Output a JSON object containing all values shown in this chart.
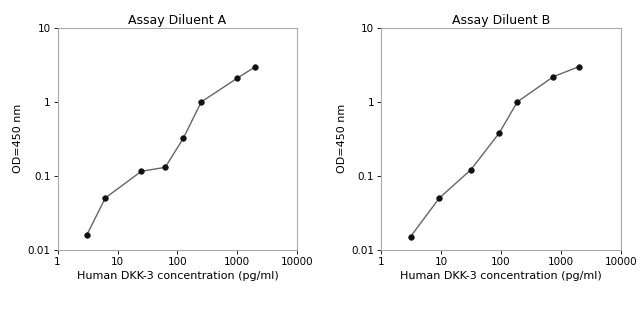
{
  "chart_A": {
    "title": "Assay Diluent A",
    "x": [
      3.1,
      6.25,
      25,
      62.5,
      125,
      250,
      1000,
      2000
    ],
    "y": [
      0.016,
      0.05,
      0.115,
      0.13,
      0.32,
      1.0,
      2.1,
      3.0
    ],
    "xlabel": "Human DKK-3 concentration (pg/ml)",
    "ylabel": "OD=450 nm",
    "xlim": [
      1,
      10000
    ],
    "ylim": [
      0.01,
      10
    ]
  },
  "chart_B": {
    "title": "Assay Diluent B",
    "x": [
      3.1,
      9.375,
      31.25,
      93.75,
      187.5,
      750,
      2000
    ],
    "y": [
      0.015,
      0.05,
      0.12,
      0.38,
      1.0,
      2.2,
      3.0
    ],
    "xlabel": "Human DKK-3 concentration (pg/ml)",
    "ylabel": "OD=450 nm",
    "xlim": [
      1,
      10000
    ],
    "ylim": [
      0.01,
      10
    ]
  },
  "line_color": "#666666",
  "marker_color": "#111111",
  "marker_size": 4,
  "bg_color": "#ffffff",
  "title_fontsize": 9,
  "label_fontsize": 8,
  "tick_fontsize": 7.5,
  "ytick_labels": [
    "0.01",
    "0.1",
    "1",
    "10"
  ],
  "ytick_values": [
    0.01,
    0.1,
    1,
    10
  ],
  "xtick_labels": [
    "1",
    "10",
    "100",
    "1000",
    "10000"
  ],
  "xtick_values": [
    1,
    10,
    100,
    1000,
    10000
  ]
}
